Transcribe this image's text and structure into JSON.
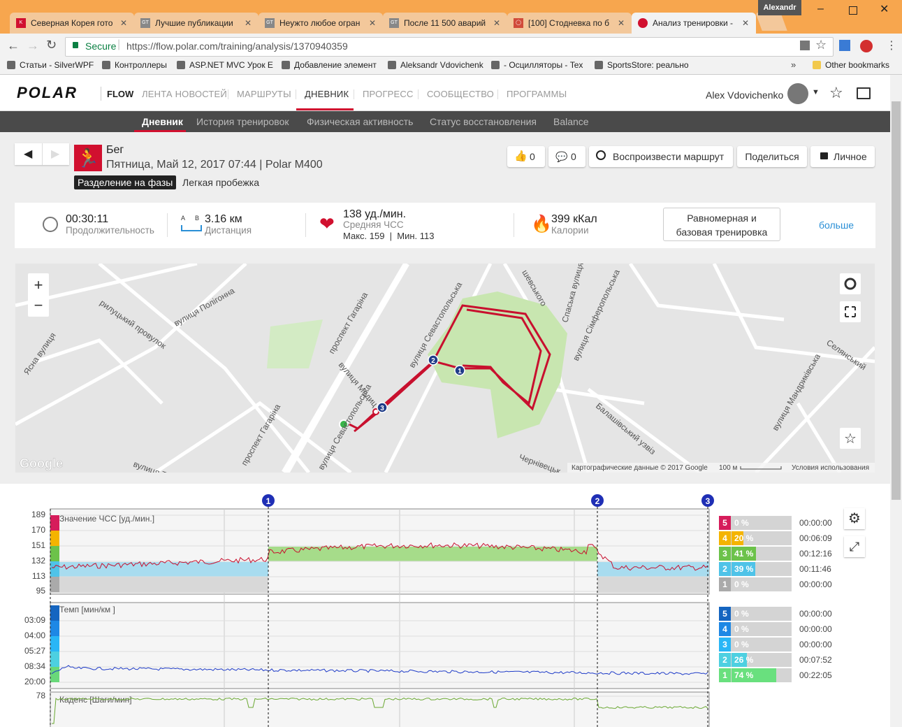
{
  "browser": {
    "tabs": [
      "Северная Корея гото",
      "Лучшие публикации",
      "Неужто любое огран",
      "После 11 500 аварий",
      "[100] Стодневка по б",
      "Анализ тренировки -"
    ],
    "profile": "Alexandr",
    "secure": "Secure",
    "url": "https://flow.polar.com/training/analysis/1370940359",
    "bookmarks": [
      "Статьи - SilverWPF",
      "Контроллеры",
      "ASP.NET MVC Урок E",
      "Добавление элемент",
      "Aleksandr Vdovichenk",
      "- Осцилляторы - Tex",
      "SportsStore: реально"
    ],
    "other_bookmarks": "Other bookmarks"
  },
  "header": {
    "logo": "POLAR",
    "product": "FLOW",
    "menu": [
      "ЛЕНТА НОВОСТЕЙ",
      "МАРШРУТЫ",
      "ДНЕВНИК",
      "ПРОГРЕСС",
      "СООБЩЕСТВО",
      "ПРОГРАММЫ"
    ],
    "user": "Alex Vdovichenko"
  },
  "subnav": [
    "Дневник",
    "История тренировок",
    "Физическая активность",
    "Статус восстановления",
    "Balance"
  ],
  "session": {
    "sport": "Бег",
    "date_device": "Пятница, Май 12, 2017 07:44 | Polar M400",
    "phase_badge": "Разделение на фазы",
    "note": "Легкая пробежка",
    "likes": "0",
    "comments": "0",
    "play_route": "Воспроизвести маршрут",
    "share": "Поделиться",
    "privacy": "Личное"
  },
  "summary": {
    "duration": "00:30:11",
    "duration_label": "Продолжительность",
    "distance": "3.16 км",
    "distance_label": "Дистанция",
    "distance_a": "A",
    "distance_b": "B",
    "heart_rate": "138 уд./мин.",
    "heart_rate_label": "Средняя ЧСС",
    "heart_rate_range": "Макс. 159  |  Мин. 113",
    "calories": "399 кКал",
    "calories_label": "Калории",
    "benefit": "Равномерная и базовая тренировка",
    "more": "больше"
  },
  "map": {
    "streets": [
      "рилуцький провулок",
      "вулиця Полігонна",
      "Ясна вулиця",
      "проспект Гагаріна",
      "проспект Гагаріна",
      "вулиця Медиц",
      "вулиця Севастопольська",
      "вулиця Севастопольська",
      "Спаська вулиця",
      "вулиця Сімферопольська",
      "Селянський",
      "вулиця Мандриківська",
      "Балашівський узвіз",
      "Чернівецьк",
      "вулиця Т",
      "шевського"
    ],
    "laps": [
      "1",
      "2",
      "3"
    ],
    "google": "Google",
    "attribution": "Картографические данные © 2017 Google",
    "scale": "100 м",
    "terms": "Условия использования"
  },
  "hr_chart": {
    "label": "Значение ЧСС [уд./мин.]",
    "yticks": [
      "189",
      "170",
      "151",
      "132",
      "113",
      "95"
    ],
    "laps": [
      "1",
      "2",
      "3"
    ],
    "zones": [
      {
        "zone": "5",
        "percent": "0 %",
        "time": "00:00:00"
      },
      {
        "zone": "4",
        "percent": "20 %",
        "time": "00:06:09"
      },
      {
        "zone": "3",
        "percent": "41 %",
        "time": "00:12:16"
      },
      {
        "zone": "2",
        "percent": "39 %",
        "time": "00:11:46"
      },
      {
        "zone": "1",
        "percent": "0 %",
        "time": "00:00:00"
      }
    ]
  },
  "pace_chart": {
    "label": "Темп [мин/км ]",
    "yticks": [
      "03:09",
      "04:00",
      "05:27",
      "08:34",
      "20:00"
    ],
    "zones": [
      {
        "zone": "5",
        "percent": "0 %",
        "time": "00:00:00"
      },
      {
        "zone": "4",
        "percent": "0 %",
        "time": "00:00:00"
      },
      {
        "zone": "3",
        "percent": "0 %",
        "time": "00:00:00"
      },
      {
        "zone": "2",
        "percent": "26 %",
        "time": "00:07:52"
      },
      {
        "zone": "1",
        "percent": "74 %",
        "time": "00:22:05"
      }
    ]
  },
  "cadence_chart": {
    "label": "Каденс [Шаги/мин]",
    "yticks": [
      "78"
    ]
  }
}
